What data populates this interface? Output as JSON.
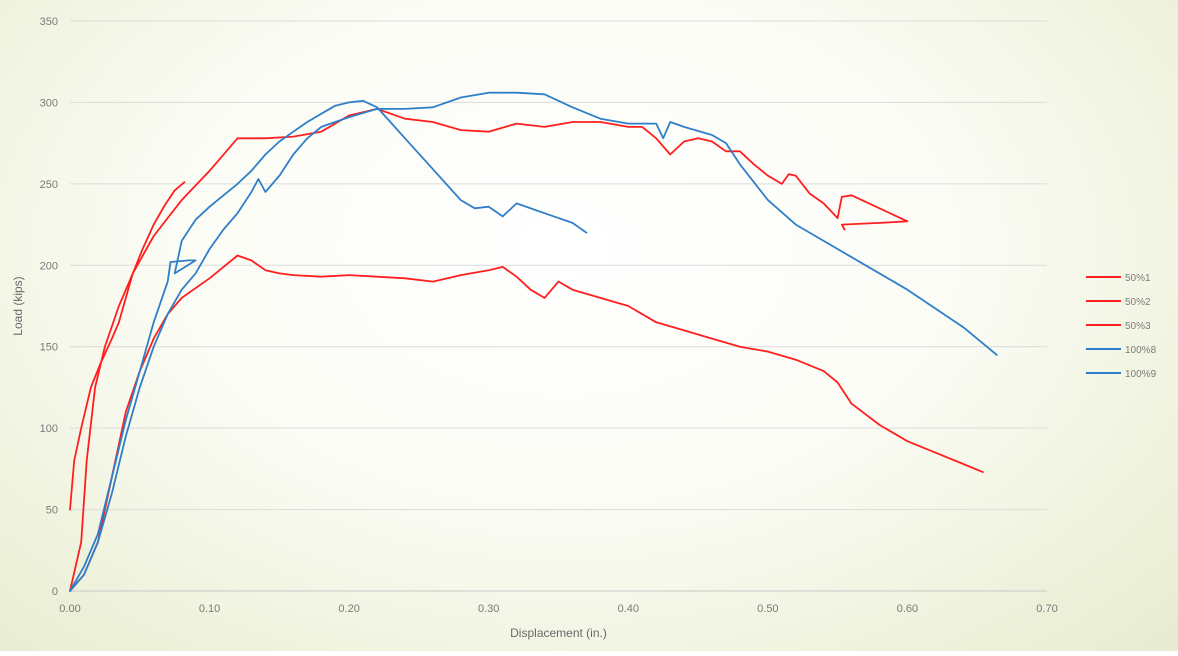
{
  "chart_data": {
    "type": "line",
    "xlabel": "Displacement (in.)",
    "ylabel": "Load (kips)",
    "xlim": [
      0,
      0.7
    ],
    "ylim": [
      0,
      350
    ],
    "xticks": [
      "0.00",
      "0.10",
      "0.20",
      "0.30",
      "0.40",
      "0.50",
      "0.60",
      "0.70"
    ],
    "yticks": [
      "0",
      "50",
      "100",
      "150",
      "200",
      "250",
      "300",
      "350"
    ],
    "grid": "horizontal",
    "legend_position": "right",
    "series": [
      {
        "name": "50%1",
        "color": "#ff1f1f",
        "points": [
          [
            0.0,
            50
          ],
          [
            0.003,
            80
          ],
          [
            0.008,
            100
          ],
          [
            0.015,
            125
          ],
          [
            0.022,
            140
          ],
          [
            0.03,
            155
          ],
          [
            0.035,
            165
          ],
          [
            0.04,
            180
          ],
          [
            0.045,
            195
          ],
          [
            0.052,
            210
          ],
          [
            0.06,
            225
          ],
          [
            0.068,
            237
          ],
          [
            0.075,
            246
          ],
          [
            0.082,
            251
          ]
        ]
      },
      {
        "name": "50%2",
        "color": "#ff1f1f",
        "points": [
          [
            0.0,
            0
          ],
          [
            0.008,
            30
          ],
          [
            0.012,
            80
          ],
          [
            0.018,
            125
          ],
          [
            0.025,
            150
          ],
          [
            0.035,
            175
          ],
          [
            0.045,
            195
          ],
          [
            0.06,
            218
          ],
          [
            0.08,
            240
          ],
          [
            0.1,
            258
          ],
          [
            0.12,
            278
          ],
          [
            0.14,
            278
          ],
          [
            0.16,
            279
          ],
          [
            0.18,
            282
          ],
          [
            0.2,
            292
          ],
          [
            0.22,
            296
          ],
          [
            0.24,
            290
          ],
          [
            0.26,
            288
          ],
          [
            0.28,
            283
          ],
          [
            0.3,
            282
          ],
          [
            0.32,
            287
          ],
          [
            0.34,
            285
          ],
          [
            0.36,
            288
          ],
          [
            0.38,
            288
          ],
          [
            0.4,
            285
          ],
          [
            0.41,
            285
          ],
          [
            0.42,
            278
          ],
          [
            0.43,
            268
          ],
          [
            0.44,
            276
          ],
          [
            0.45,
            278
          ],
          [
            0.46,
            276
          ],
          [
            0.47,
            270
          ],
          [
            0.48,
            270
          ],
          [
            0.49,
            262
          ],
          [
            0.5,
            255
          ],
          [
            0.51,
            250
          ],
          [
            0.515,
            256
          ],
          [
            0.52,
            255
          ],
          [
            0.53,
            244
          ],
          [
            0.54,
            238
          ],
          [
            0.55,
            229
          ],
          [
            0.553,
            242
          ],
          [
            0.56,
            243
          ],
          [
            0.58,
            235
          ],
          [
            0.6,
            227
          ],
          [
            0.58,
            226
          ],
          [
            0.553,
            225
          ],
          [
            0.555,
            222
          ]
        ]
      },
      {
        "name": "50%3",
        "color": "#ff1f1f",
        "points": [
          [
            0.0,
            0
          ],
          [
            0.01,
            10
          ],
          [
            0.02,
            30
          ],
          [
            0.03,
            70
          ],
          [
            0.04,
            110
          ],
          [
            0.05,
            135
          ],
          [
            0.06,
            155
          ],
          [
            0.07,
            170
          ],
          [
            0.08,
            180
          ],
          [
            0.1,
            192
          ],
          [
            0.12,
            206
          ],
          [
            0.13,
            203
          ],
          [
            0.14,
            197
          ],
          [
            0.15,
            195
          ],
          [
            0.16,
            194
          ],
          [
            0.18,
            193
          ],
          [
            0.2,
            194
          ],
          [
            0.22,
            193
          ],
          [
            0.24,
            192
          ],
          [
            0.26,
            190
          ],
          [
            0.28,
            194
          ],
          [
            0.3,
            197
          ],
          [
            0.31,
            199
          ],
          [
            0.32,
            193
          ],
          [
            0.33,
            185
          ],
          [
            0.34,
            180
          ],
          [
            0.35,
            190
          ],
          [
            0.36,
            185
          ],
          [
            0.38,
            180
          ],
          [
            0.4,
            175
          ],
          [
            0.42,
            165
          ],
          [
            0.44,
            160
          ],
          [
            0.46,
            155
          ],
          [
            0.48,
            150
          ],
          [
            0.5,
            147
          ],
          [
            0.52,
            142
          ],
          [
            0.54,
            135
          ],
          [
            0.55,
            128
          ],
          [
            0.56,
            115
          ],
          [
            0.58,
            102
          ],
          [
            0.6,
            92
          ],
          [
            0.62,
            85
          ],
          [
            0.64,
            78
          ],
          [
            0.654,
            73
          ]
        ]
      },
      {
        "name": "100%8",
        "color": "#2f7fc8",
        "points": [
          [
            0.0,
            0
          ],
          [
            0.01,
            10
          ],
          [
            0.02,
            30
          ],
          [
            0.03,
            60
          ],
          [
            0.04,
            95
          ],
          [
            0.05,
            125
          ],
          [
            0.06,
            150
          ],
          [
            0.07,
            170
          ],
          [
            0.08,
            185
          ],
          [
            0.09,
            195
          ],
          [
            0.1,
            210
          ],
          [
            0.11,
            222
          ],
          [
            0.12,
            232
          ],
          [
            0.13,
            245
          ],
          [
            0.135,
            253
          ],
          [
            0.14,
            245
          ],
          [
            0.15,
            255
          ],
          [
            0.16,
            268
          ],
          [
            0.17,
            278
          ],
          [
            0.18,
            285
          ],
          [
            0.2,
            291
          ],
          [
            0.22,
            296
          ],
          [
            0.24,
            296
          ],
          [
            0.26,
            297
          ],
          [
            0.28,
            303
          ],
          [
            0.3,
            306
          ],
          [
            0.32,
            306
          ],
          [
            0.34,
            305
          ],
          [
            0.36,
            297
          ],
          [
            0.38,
            290
          ],
          [
            0.4,
            287
          ],
          [
            0.42,
            287
          ],
          [
            0.425,
            278
          ],
          [
            0.43,
            288
          ],
          [
            0.44,
            285
          ],
          [
            0.46,
            280
          ],
          [
            0.47,
            275
          ],
          [
            0.48,
            262
          ],
          [
            0.5,
            240
          ],
          [
            0.52,
            225
          ],
          [
            0.55,
            210
          ],
          [
            0.6,
            185
          ],
          [
            0.64,
            162
          ],
          [
            0.664,
            145
          ]
        ]
      },
      {
        "name": "100%9",
        "color": "#2f7fc8",
        "points": [
          [
            0.0,
            0
          ],
          [
            0.01,
            15
          ],
          [
            0.02,
            35
          ],
          [
            0.03,
            70
          ],
          [
            0.04,
            105
          ],
          [
            0.05,
            135
          ],
          [
            0.06,
            165
          ],
          [
            0.07,
            190
          ],
          [
            0.072,
            202
          ],
          [
            0.085,
            203
          ],
          [
            0.09,
            203
          ],
          [
            0.075,
            195
          ],
          [
            0.08,
            215
          ],
          [
            0.09,
            228
          ],
          [
            0.1,
            236
          ],
          [
            0.11,
            243
          ],
          [
            0.12,
            250
          ],
          [
            0.13,
            258
          ],
          [
            0.14,
            268
          ],
          [
            0.15,
            276
          ],
          [
            0.16,
            282
          ],
          [
            0.17,
            288
          ],
          [
            0.18,
            293
          ],
          [
            0.19,
            298
          ],
          [
            0.2,
            300
          ],
          [
            0.21,
            301
          ],
          [
            0.22,
            297
          ],
          [
            0.24,
            278
          ],
          [
            0.26,
            259
          ],
          [
            0.28,
            240
          ],
          [
            0.29,
            235
          ],
          [
            0.3,
            236
          ],
          [
            0.31,
            230
          ],
          [
            0.32,
            238
          ],
          [
            0.34,
            232
          ],
          [
            0.36,
            226
          ],
          [
            0.37,
            220
          ]
        ]
      }
    ]
  }
}
